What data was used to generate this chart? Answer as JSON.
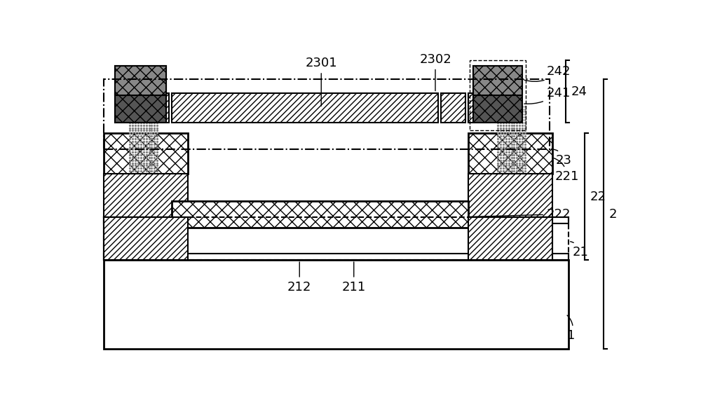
{
  "fig_width": 10.0,
  "fig_height": 5.91,
  "bg_color": "#ffffff",
  "lw_thick": 2.0,
  "lw_med": 1.5,
  "lw_thin": 1.0,
  "fs": 13
}
